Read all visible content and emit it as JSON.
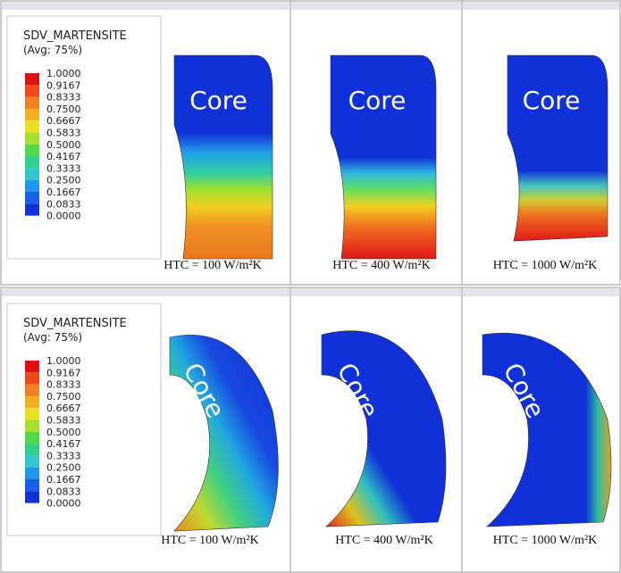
{
  "rows": [
    {
      "legend": {
        "title": "SDV_MARTENSITE",
        "subtitle": "(Avg: 75%)",
        "labels": [
          "1.0000",
          "0.9167",
          "0.8333",
          "0.7500",
          "0.6667",
          "0.5833",
          "0.5000",
          "0.4167",
          "0.3333",
          "0.2500",
          "0.1667",
          "0.0833",
          "0.0000"
        ]
      },
      "panels": [
        {
          "core": "Core",
          "htc": "HTC = 100 W/m²K"
        },
        {
          "core": "Core",
          "htc": "HTC = 400 W/m²K"
        },
        {
          "core": "Core",
          "htc": "HTC = 1000 W/m²K"
        }
      ]
    },
    {
      "legend": {
        "title": "SDV_MARTENSITE",
        "subtitle": "(Avg: 75%)",
        "labels": [
          "1.0000",
          "0.9167",
          "0.8333",
          "0.7500",
          "0.6667",
          "0.5833",
          "0.5000",
          "0.4167",
          "0.3333",
          "0.2500",
          "0.1667",
          "0.0833",
          "0.0000"
        ]
      },
      "panels": [
        {
          "core": "Core",
          "htc": "HTC = 100 W/m²K"
        },
        {
          "core": "Core",
          "htc": "HTC = 400 W/m²K"
        },
        {
          "core": "Core",
          "htc": "HTC = 1000 W/m²K"
        }
      ]
    }
  ]
}
